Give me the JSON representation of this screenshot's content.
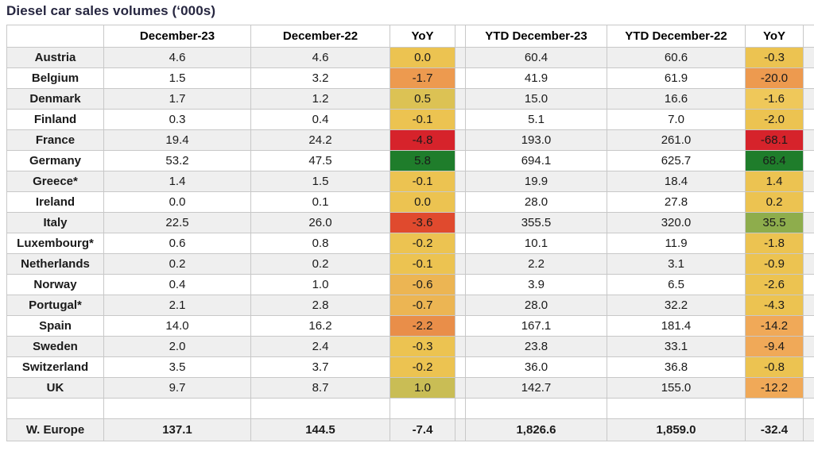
{
  "title": "Diesel car sales volumes (‘000s)",
  "colors": {
    "yellow": "#ecc351",
    "yellow_orange": "#ecb553",
    "olive_yellow": "#dcc254",
    "olive": "#c9bd55",
    "olive_green": "#8ead4c",
    "green": "#1f7d2b",
    "light_orange": "#f0a958",
    "orange": "#ed9a4f",
    "deep_orange": "#e98e49",
    "orange_red": "#e04a2e",
    "red": "#d6232b",
    "grid_line": "#c8c8c8",
    "stripe_bg": "#efefef",
    "title_text": "#262640"
  },
  "chart_data": {
    "type": "table",
    "title": "Diesel car sales volumes (‘000s)",
    "columns": [
      "",
      "December-23",
      "December-22",
      "YoY",
      "YTD December-23",
      "YTD December-22",
      "YoY"
    ],
    "rows": [
      {
        "label": "Austria",
        "values": [
          "4.6",
          "4.6",
          "0.0",
          "60.4",
          "60.6",
          "-0.3"
        ],
        "yoy_bg": [
          "#ecc351",
          "#ecc351"
        ]
      },
      {
        "label": "Belgium",
        "values": [
          "1.5",
          "3.2",
          "-1.7",
          "41.9",
          "61.9",
          "-20.0"
        ],
        "yoy_bg": [
          "#ed9a4f",
          "#ed9a4f"
        ]
      },
      {
        "label": "Denmark",
        "values": [
          "1.7",
          "1.2",
          "0.5",
          "15.0",
          "16.6",
          "-1.6"
        ],
        "yoy_bg": [
          "#dcc254",
          "#efc85a"
        ]
      },
      {
        "label": "Finland",
        "values": [
          "0.3",
          "0.4",
          "-0.1",
          "5.1",
          "7.0",
          "-2.0"
        ],
        "yoy_bg": [
          "#ecc351",
          "#ecc351"
        ]
      },
      {
        "label": "France",
        "values": [
          "19.4",
          "24.2",
          "-4.8",
          "193.0",
          "261.0",
          "-68.1"
        ],
        "yoy_bg": [
          "#d6232b",
          "#d6232b"
        ]
      },
      {
        "label": "Germany",
        "values": [
          "53.2",
          "47.5",
          "5.8",
          "694.1",
          "625.7",
          "68.4"
        ],
        "yoy_bg": [
          "#1f7d2b",
          "#1f7d2b"
        ]
      },
      {
        "label": "Greece*",
        "values": [
          "1.4",
          "1.5",
          "-0.1",
          "19.9",
          "18.4",
          "1.4"
        ],
        "yoy_bg": [
          "#ecc351",
          "#ecc351"
        ]
      },
      {
        "label": "Ireland",
        "values": [
          "0.0",
          "0.1",
          "0.0",
          "28.0",
          "27.8",
          "0.2"
        ],
        "yoy_bg": [
          "#ecc351",
          "#ecc351"
        ]
      },
      {
        "label": "Italy",
        "values": [
          "22.5",
          "26.0",
          "-3.6",
          "355.5",
          "320.0",
          "35.5"
        ],
        "yoy_bg": [
          "#e04a2e",
          "#8ead4c"
        ]
      },
      {
        "label": "Luxembourg*",
        "values": [
          "0.6",
          "0.8",
          "-0.2",
          "10.1",
          "11.9",
          "-1.8"
        ],
        "yoy_bg": [
          "#ecc351",
          "#ecc351"
        ]
      },
      {
        "label": "Netherlands",
        "values": [
          "0.2",
          "0.2",
          "-0.1",
          "2.2",
          "3.1",
          "-0.9"
        ],
        "yoy_bg": [
          "#ecc351",
          "#ecc351"
        ]
      },
      {
        "label": "Norway",
        "values": [
          "0.4",
          "1.0",
          "-0.6",
          "3.9",
          "6.5",
          "-2.6"
        ],
        "yoy_bg": [
          "#ecb553",
          "#ecc351"
        ]
      },
      {
        "label": "Portugal*",
        "values": [
          "2.1",
          "2.8",
          "-0.7",
          "28.0",
          "32.2",
          "-4.3"
        ],
        "yoy_bg": [
          "#ecb553",
          "#ecc351"
        ]
      },
      {
        "label": "Spain",
        "values": [
          "14.0",
          "16.2",
          "-2.2",
          "167.1",
          "181.4",
          "-14.2"
        ],
        "yoy_bg": [
          "#e98e49",
          "#f0a958"
        ]
      },
      {
        "label": "Sweden",
        "values": [
          "2.0",
          "2.4",
          "-0.3",
          "23.8",
          "33.1",
          "-9.4"
        ],
        "yoy_bg": [
          "#ecc351",
          "#f0a958"
        ]
      },
      {
        "label": "Switzerland",
        "values": [
          "3.5",
          "3.7",
          "-0.2",
          "36.0",
          "36.8",
          "-0.8"
        ],
        "yoy_bg": [
          "#ecc351",
          "#ecc351"
        ]
      },
      {
        "label": "UK",
        "values": [
          "9.7",
          "8.7",
          "1.0",
          "142.7",
          "155.0",
          "-12.2"
        ],
        "yoy_bg": [
          "#c9bd55",
          "#f0a958"
        ]
      }
    ],
    "blank_row": {
      "label": "",
      "values": [
        "",
        "",
        "",
        "",
        "",
        ""
      ]
    },
    "total_row": {
      "label": "W. Europe",
      "values": [
        "137.1",
        "144.5",
        "-7.4",
        "1,826.6",
        "1,859.0",
        "-32.4"
      ]
    },
    "legend_note_colors": "YoY cells shaded red (decline) to green (growth)"
  }
}
